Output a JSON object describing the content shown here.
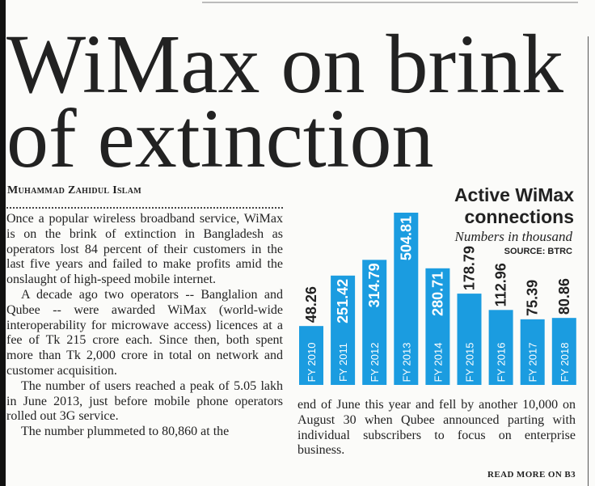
{
  "header": {
    "title": "WiMax on brink of extinction",
    "byline": "Muhammad Zahidul Islam"
  },
  "article": {
    "paragraphs": [
      "Once a popular wireless broadband service, WiMax is on the brink of extinction in Bangladesh as operators lost 84 percent of their customers in the last five years and failed to make profits amid the onslaught of high-speed mobile internet.",
      "A decade ago two operators -- Banglalion and Qubee -- were awarded WiMax (world-wide interoperability for microwave access) licences at a fee of Tk 215 crore each. Since then, both spent more than Tk 2,000 crore in total on network and customer acquisition.",
      "The number of users reached a peak of 5.05 lakh in June 2013, just before mobile phone operators rolled out 3G service.",
      "The number plummeted to 80,860 at the"
    ],
    "continued": "end of June this year and fell by another 10,000 on August 30 when Qubee announced parting with individual subscribers to focus on enterprise business.",
    "jump": "READ MORE ON B3"
  },
  "chart_data": {
    "type": "bar",
    "title": "Active WiMax connections",
    "subtitle": "Numbers in thousand",
    "source": "SOURCE: BTRC",
    "categories": [
      "FY 2010",
      "FY 2011",
      "FY 2012",
      "FY 2013",
      "FY 2014",
      "FY 2015",
      "FY 2016",
      "FY 2017",
      "FY 2018"
    ],
    "values": [
      48.26,
      251.42,
      314.79,
      504.81,
      280.71,
      178.79,
      112.96,
      75.39,
      80.86
    ],
    "color": "#1b9ce0"
  }
}
